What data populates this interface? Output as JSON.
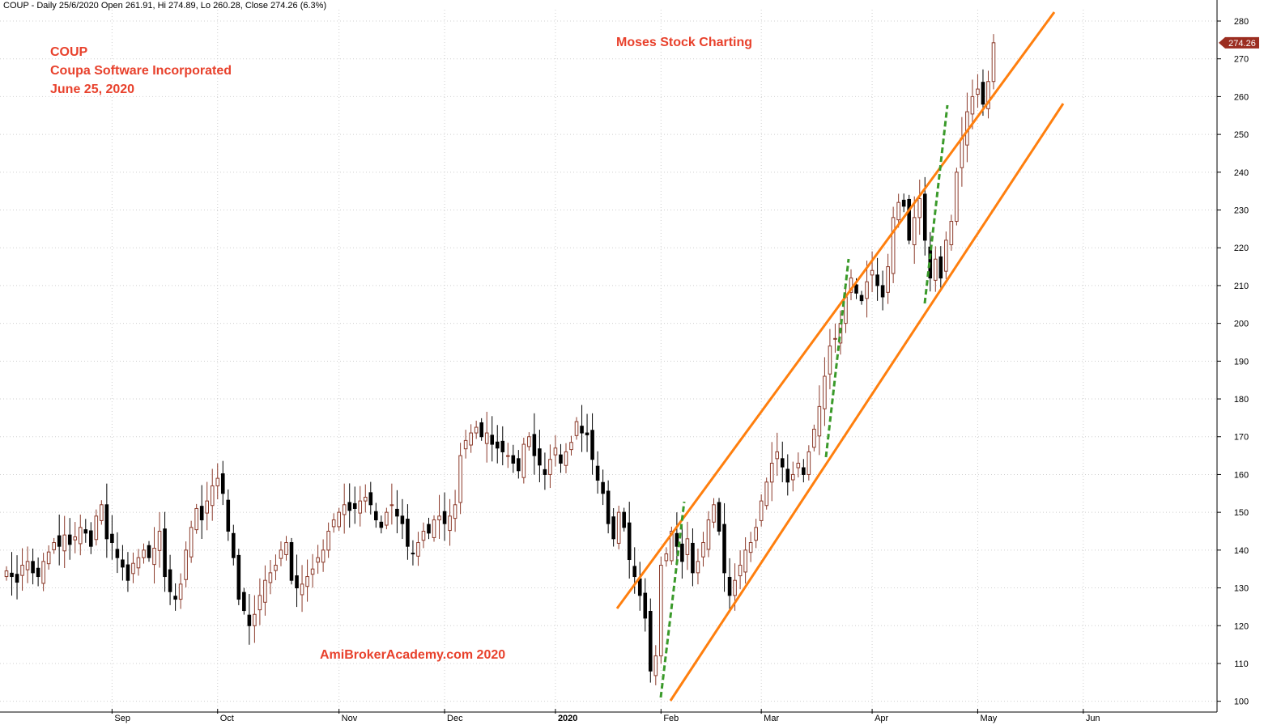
{
  "header": "COUP - Daily 25/6/2020 Open 261.91, Hi 274.89, Lo 260.28, Close 274.26 (6.3%)",
  "annotations": {
    "ticker": "COUP",
    "company": "Coupa Software Incorporated",
    "date": "June 25, 2020",
    "brand": "Moses Stock Charting",
    "watermark": "AmiBrokerAcademy.com  2020"
  },
  "colors": {
    "up": "#8b3a2a",
    "down": "#000000",
    "channel": "#ff7f0e",
    "trend": "#3a9a2a",
    "annotation": "#e8412c",
    "last_price_badge": "#9b2d20",
    "grid": "#cfcfcf"
  },
  "chart_data": {
    "type": "candlestick",
    "title": "COUP",
    "ylim": [
      98,
      283
    ],
    "yticks": [
      100,
      110,
      120,
      130,
      140,
      150,
      160,
      170,
      180,
      190,
      200,
      210,
      220,
      230,
      240,
      250,
      260,
      270,
      280
    ],
    "x_labels": [
      {
        "label": "Sep",
        "bar": 20,
        "bold": false
      },
      {
        "label": "Oct",
        "bar": 40,
        "bold": false
      },
      {
        "label": "Nov",
        "bar": 63,
        "bold": false
      },
      {
        "label": "Dec",
        "bar": 83,
        "bold": false
      },
      {
        "label": "2020",
        "bar": 104,
        "bold": true
      },
      {
        "label": "Feb",
        "bar": 124,
        "bold": false
      },
      {
        "label": "Mar",
        "bar": 143,
        "bold": false
      },
      {
        "label": "Apr",
        "bar": 164,
        "bold": false
      },
      {
        "label": "May",
        "bar": 184,
        "bold": false
      },
      {
        "label": "Jun",
        "bar": 204,
        "bold": false
      }
    ],
    "last_price": 274.26,
    "closes": [
      134.5,
      133.0,
      131.5,
      136.0,
      137.0,
      134.0,
      133.0,
      137.0,
      139.5,
      142.0,
      141.0,
      144.0,
      141.5,
      143.5,
      146.0,
      144.5,
      141.0,
      149.0,
      152.0,
      143.0,
      142.0,
      138.0,
      135.5,
      132.0,
      136.5,
      138.0,
      140.0,
      138.0,
      140.5,
      145.0,
      133.0,
      129.0,
      127.0,
      131.0,
      140.0,
      146.0,
      151.0,
      148.0,
      153.0,
      157.0,
      159.0,
      155.0,
      145.0,
      138.0,
      127.0,
      124.0,
      120.0,
      123.0,
      128.0,
      132.0,
      134.0,
      136.0,
      140.0,
      142.0,
      132.0,
      130.0,
      131.0,
      133.0,
      135.0,
      138.0,
      140.0,
      145.0,
      148.0,
      150.0,
      152.0,
      150.5,
      151.0,
      153.0,
      154.0,
      152.0,
      148.0,
      146.0,
      150.0,
      152.0,
      149.0,
      147.0,
      141.0,
      139.0,
      142.0,
      145.0,
      144.5,
      148.0,
      149.0,
      147.0,
      149.0,
      152.0,
      165.0,
      169.0,
      171.0,
      172.5,
      170.0,
      171.0,
      168.0,
      167.0,
      166.0,
      165.0,
      163.0,
      161.0,
      168.0,
      170.0,
      165.0,
      162.5,
      160.0,
      164.0,
      167.0,
      163.0,
      166.0,
      168.5,
      174.0,
      171.0,
      170.5,
      164.0,
      158.5,
      155.0,
      147.0,
      143.0,
      150.0,
      146.0,
      137.5,
      133.0,
      128.0,
      122.0,
      108.0,
      112.0,
      136.0,
      139.0,
      145.0,
      141.0,
      137.0,
      143.0,
      134.0,
      137.0,
      142.0,
      148.0,
      152.0,
      145.0,
      134.0,
      128.0,
      132.0,
      136.0,
      140.0,
      142.0,
      146.0,
      153.0,
      158.0,
      163.0,
      166.0,
      162.0,
      158.0,
      160.0,
      163.0,
      160.0,
      166.0,
      172.0,
      178.0,
      186.0,
      194.0,
      196.0,
      200.0,
      207.0,
      212.0,
      208.0,
      206.0,
      211.0,
      214.0,
      210.0,
      207.0,
      215.0,
      228.0,
      232.0,
      231.0,
      222.0,
      228.0,
      233.0,
      222.0,
      212.0,
      217.0,
      212.0,
      222.0,
      227.0,
      240.0,
      249.0,
      256.0,
      260.0,
      262.0,
      258.0,
      264.0,
      274.26
    ]
  }
}
